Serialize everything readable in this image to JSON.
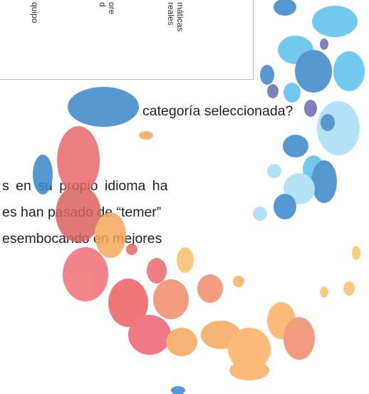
{
  "table": {
    "headers": [
      [
        "quipo"
      ],
      [
        "ore",
        "d"
      ],
      [
        "máticas",
        "reales"
      ]
    ]
  },
  "question": "categoría seleccionada?",
  "paragraph": [
    "s en su propio idioma ha",
    "es han pasado de “temer”",
    "esembocando en mejores"
  ]
}
